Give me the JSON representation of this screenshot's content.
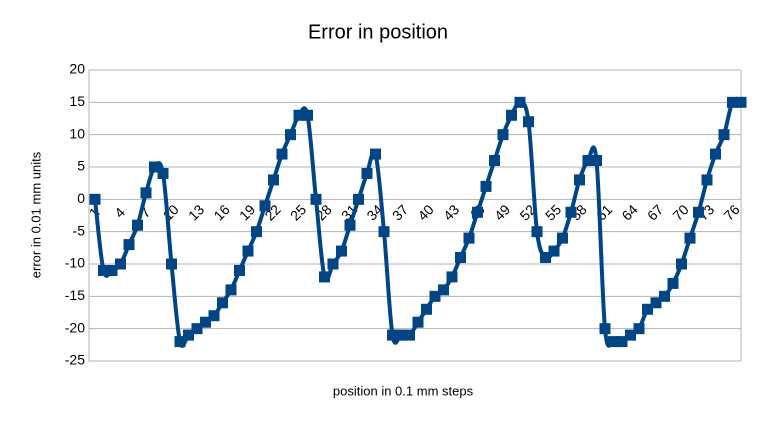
{
  "chart_data": {
    "type": "line",
    "title": "Error in position",
    "x_label": "position in 0.1 mm steps",
    "y_label": "error in 0.01 mm units",
    "categories": [
      "1",
      null,
      null,
      "4",
      null,
      null,
      "7",
      null,
      null,
      "10",
      null,
      null,
      "13",
      null,
      null,
      "16",
      null,
      null,
      "19",
      null,
      null,
      "22",
      null,
      null,
      "25",
      null,
      null,
      "28",
      null,
      null,
      "31",
      null,
      null,
      "34",
      null,
      null,
      "37",
      null,
      null,
      "40",
      null,
      null,
      "43",
      null,
      null,
      "46",
      null,
      null,
      "49",
      null,
      null,
      "52",
      null,
      null,
      "55",
      null,
      null,
      "58",
      null,
      null,
      "61",
      null,
      null,
      "64",
      null,
      null,
      "67",
      null,
      null,
      "70",
      null,
      null,
      "73",
      null,
      null,
      "76",
      null
    ],
    "values": [
      0,
      -11,
      -11,
      -10,
      -7,
      -4,
      1,
      5,
      4,
      -10,
      -22,
      -21,
      -20,
      -19,
      -18,
      -16,
      -14,
      -11,
      -8,
      -5,
      -1,
      3,
      7,
      10,
      13,
      13,
      0,
      -12,
      -10,
      -8,
      -4,
      0,
      4,
      7,
      -5,
      -21,
      -21,
      -21,
      -19,
      -17,
      -15,
      -14,
      -12,
      -9,
      -6,
      -2,
      2,
      6,
      10,
      13,
      15,
      12,
      -5,
      -9,
      -8,
      -6,
      -2,
      3,
      6,
      6,
      -20,
      -22,
      -22,
      -21,
      -20,
      -17,
      -16,
      -15,
      -13,
      -10,
      -6,
      -2,
      3,
      7,
      10,
      15,
      15
    ],
    "color": "#004586",
    "smooth": true,
    "ylim": [
      -25,
      20
    ],
    "yticks": [
      -25,
      -20,
      -15,
      -10,
      -5,
      0,
      5,
      10,
      15,
      20
    ],
    "grid": true
  }
}
